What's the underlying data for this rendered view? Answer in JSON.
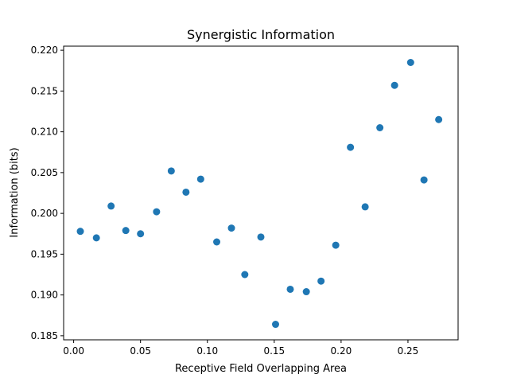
{
  "chart_data": {
    "type": "scatter",
    "title": "Synergistic Information",
    "xlabel": "Receptive Field Overlapping Area",
    "ylabel": "Information (bits)",
    "xlim": [
      -0.0075,
      0.2875
    ],
    "ylim": [
      0.1845,
      0.2205
    ],
    "xticks": [
      0.0,
      0.05,
      0.1,
      0.15,
      0.2,
      0.25
    ],
    "xtick_labels": [
      "0.00",
      "0.05",
      "0.10",
      "0.15",
      "0.20",
      "0.25"
    ],
    "yticks": [
      0.185,
      0.19,
      0.195,
      0.2,
      0.205,
      0.21,
      0.215,
      0.22
    ],
    "ytick_labels": [
      "0.185",
      "0.190",
      "0.195",
      "0.200",
      "0.205",
      "0.210",
      "0.215",
      "0.220"
    ],
    "grid": false,
    "marker_color": "#1f77b4",
    "series": [
      {
        "x": [
          0.005,
          0.017,
          0.028,
          0.039,
          0.05,
          0.062,
          0.073,
          0.084,
          0.095,
          0.107,
          0.118,
          0.128,
          0.14,
          0.151,
          0.162,
          0.174,
          0.185,
          0.196,
          0.207,
          0.218,
          0.229,
          0.24,
          0.252,
          0.262,
          0.273
        ],
        "y": [
          0.1978,
          0.197,
          0.2009,
          0.1979,
          0.1975,
          0.2002,
          0.2052,
          0.2026,
          0.2042,
          0.1965,
          0.1982,
          0.1925,
          0.1971,
          0.1864,
          0.1907,
          0.1904,
          0.1917,
          0.1961,
          0.2081,
          0.2008,
          0.2105,
          0.2157,
          0.2185,
          0.2041,
          0.2115
        ]
      }
    ]
  }
}
